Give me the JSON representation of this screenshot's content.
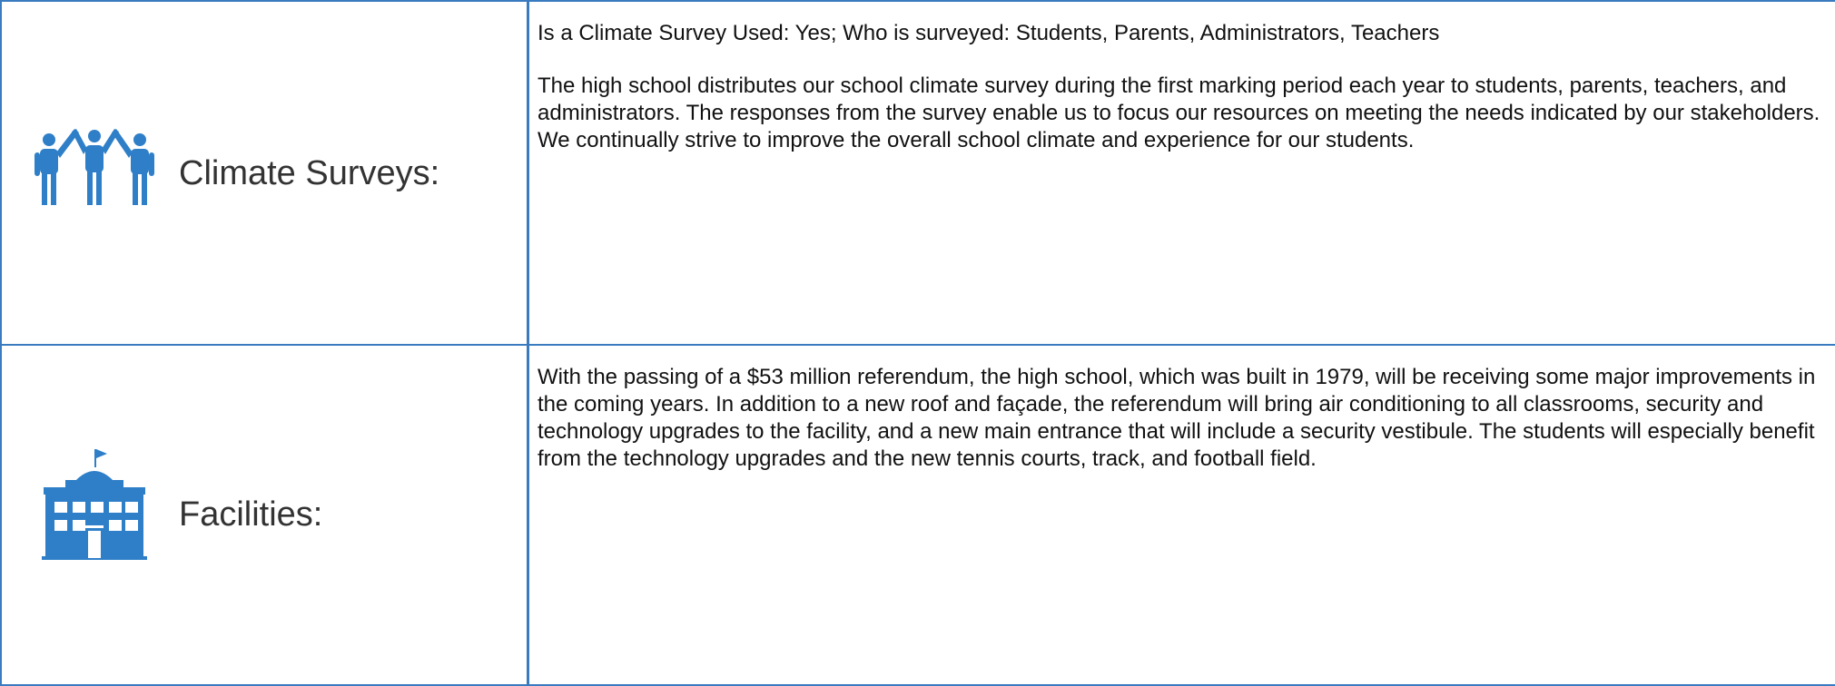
{
  "rows": [
    {
      "label": "Climate Surveys:",
      "paragraphs": [
        "Is a Climate Survey Used: Yes; Who is surveyed: Students, Parents, Administrators, Teachers",
        "The high school distributes our school climate survey during the first marking period each year to students, parents, teachers, and administrators. The responses from the survey enable us to focus our resources on meeting the needs indicated by our stakeholders. We continually strive to improve the overall school climate and experience for our students."
      ]
    },
    {
      "label": "Facilities:",
      "paragraphs": [
        "With the passing of a $53 million referendum, the high school, which was built in 1979, will be receiving some major improvements in the coming years. In addition to a new roof and façade, the referendum will bring air conditioning to all classrooms, security and technology upgrades to the facility, and a new main entrance that will include a security vestibule. The students will especially benefit from the technology upgrades and the new tennis courts, track, and football field."
      ]
    }
  ]
}
